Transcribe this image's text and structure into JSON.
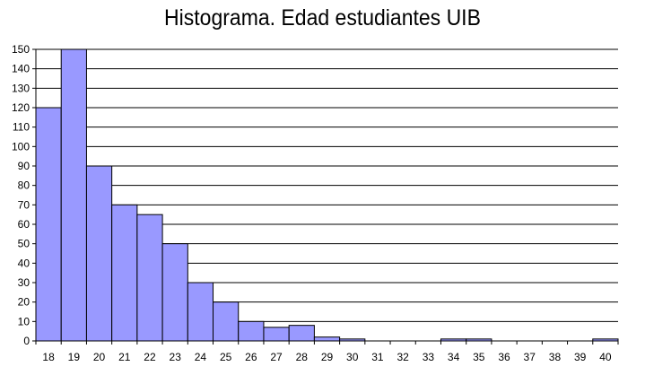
{
  "chart_data": {
    "type": "bar",
    "title": "Histograma. Edad estudiantes UIB",
    "categories": [
      "18",
      "19",
      "20",
      "21",
      "22",
      "23",
      "24",
      "25",
      "26",
      "27",
      "28",
      "29",
      "30",
      "31",
      "32",
      "33",
      "34",
      "35",
      "36",
      "37",
      "38",
      "39",
      "40"
    ],
    "values": [
      120,
      150,
      90,
      70,
      65,
      50,
      30,
      20,
      10,
      7,
      8,
      2,
      1,
      0,
      0,
      0,
      1,
      1,
      0,
      0,
      0,
      0,
      1
    ],
    "xlabel": "",
    "ylabel": "",
    "ylim": [
      0,
      150
    ],
    "yticks": [
      0,
      10,
      20,
      30,
      40,
      50,
      60,
      70,
      80,
      90,
      100,
      110,
      120,
      130,
      140,
      150
    ],
    "grid": true,
    "bar_color": "#9999ff"
  }
}
